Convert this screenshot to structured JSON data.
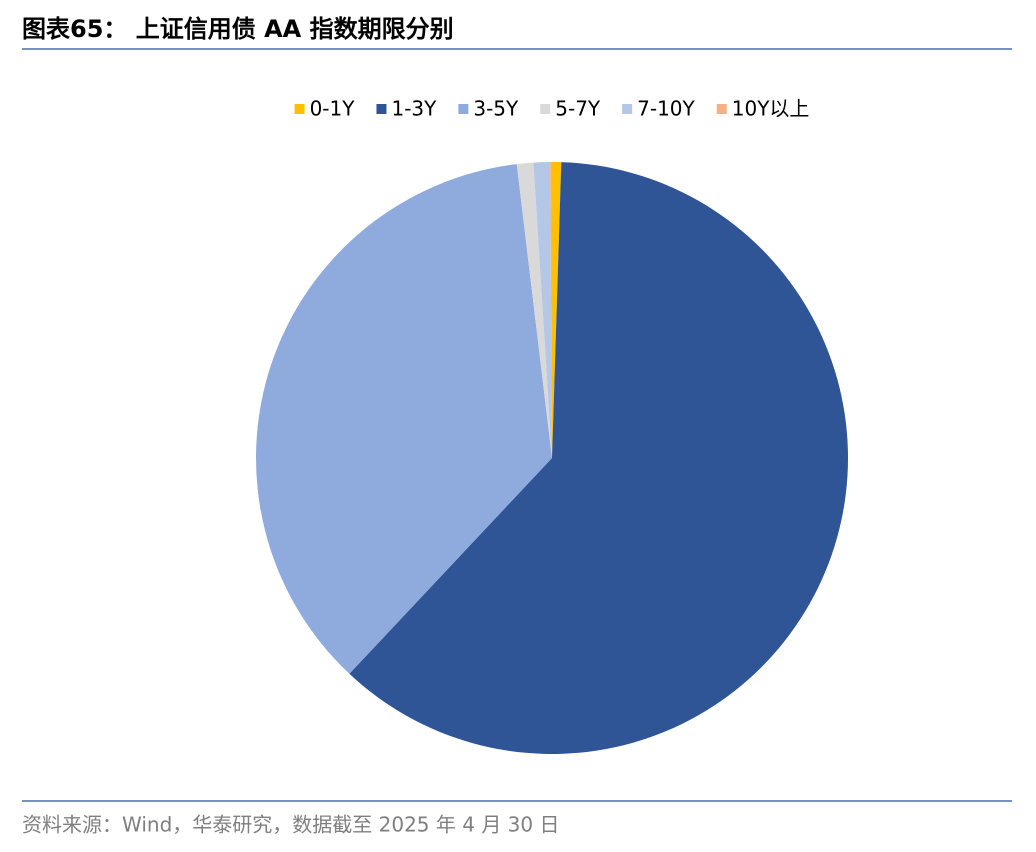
{
  "chart_data": {
    "type": "pie",
    "title": "图表65： 上证信用债 AA 指数期限分别",
    "source": "资料来源：Wind，华泰研究，数据截至 2025 年 4 月 30 日",
    "categories": [
      "0-1Y",
      "1-3Y",
      "3-5Y",
      "5-7Y",
      "7-10Y",
      "10Y以上"
    ],
    "values": [
      0.5,
      61.5,
      36.1,
      0.9,
      0.9,
      0.1
    ],
    "colors": [
      "#ffc000",
      "#2f5597",
      "#8faadc",
      "#d9d9d9",
      "#b4c7e7",
      "#f4b183"
    ],
    "legend": "top"
  }
}
